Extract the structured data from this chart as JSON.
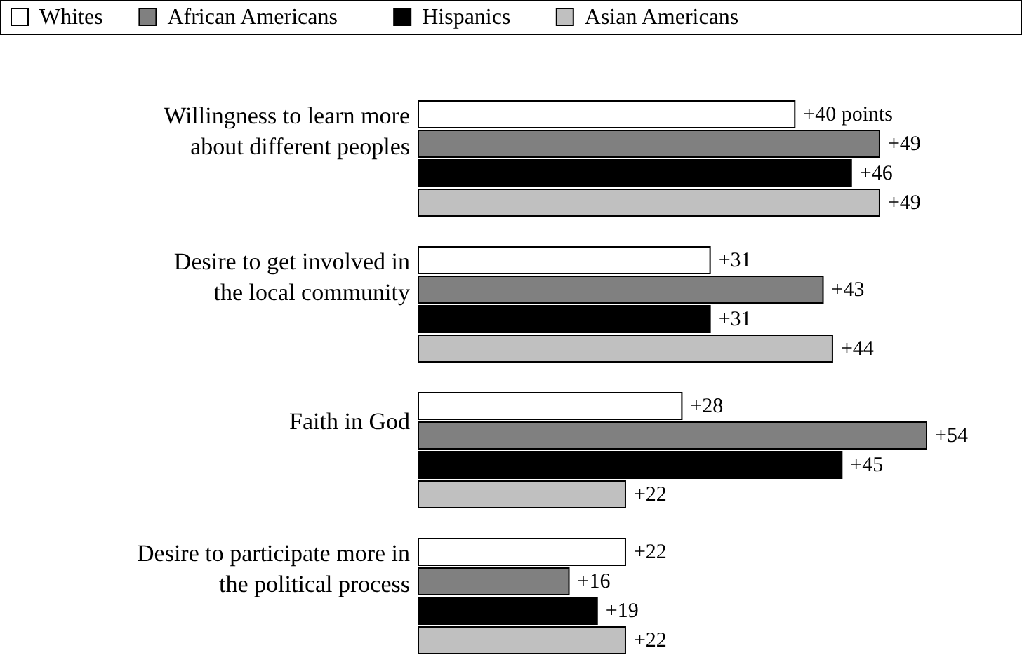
{
  "chart_data": {
    "type": "bar",
    "orientation": "horizontal",
    "categories": [
      "Willingness to learn more\nabout different peoples",
      "Desire to get involved in\nthe local community",
      "Faith in God",
      "Desire to participate more in\nthe political process"
    ],
    "series": [
      {
        "name": "Whites",
        "color": "#ffffff",
        "values": [
          40,
          31,
          28,
          22
        ],
        "value_labels": [
          "+40 points",
          "+31",
          "+28",
          "+22"
        ]
      },
      {
        "name": "African Americans",
        "color": "#808080",
        "values": [
          49,
          43,
          54,
          16
        ],
        "value_labels": [
          "+49",
          "+43",
          "+54",
          "+16"
        ]
      },
      {
        "name": "Hispanics",
        "color": "#000000",
        "values": [
          46,
          31,
          45,
          19
        ],
        "value_labels": [
          "+46",
          "+31",
          "+45",
          "+19"
        ]
      },
      {
        "name": "Asian Americans",
        "color": "#c0c0c0",
        "values": [
          49,
          44,
          22,
          22
        ],
        "value_labels": [
          "+49",
          "+44",
          "+22",
          "+22"
        ]
      }
    ],
    "legend": "top"
  }
}
